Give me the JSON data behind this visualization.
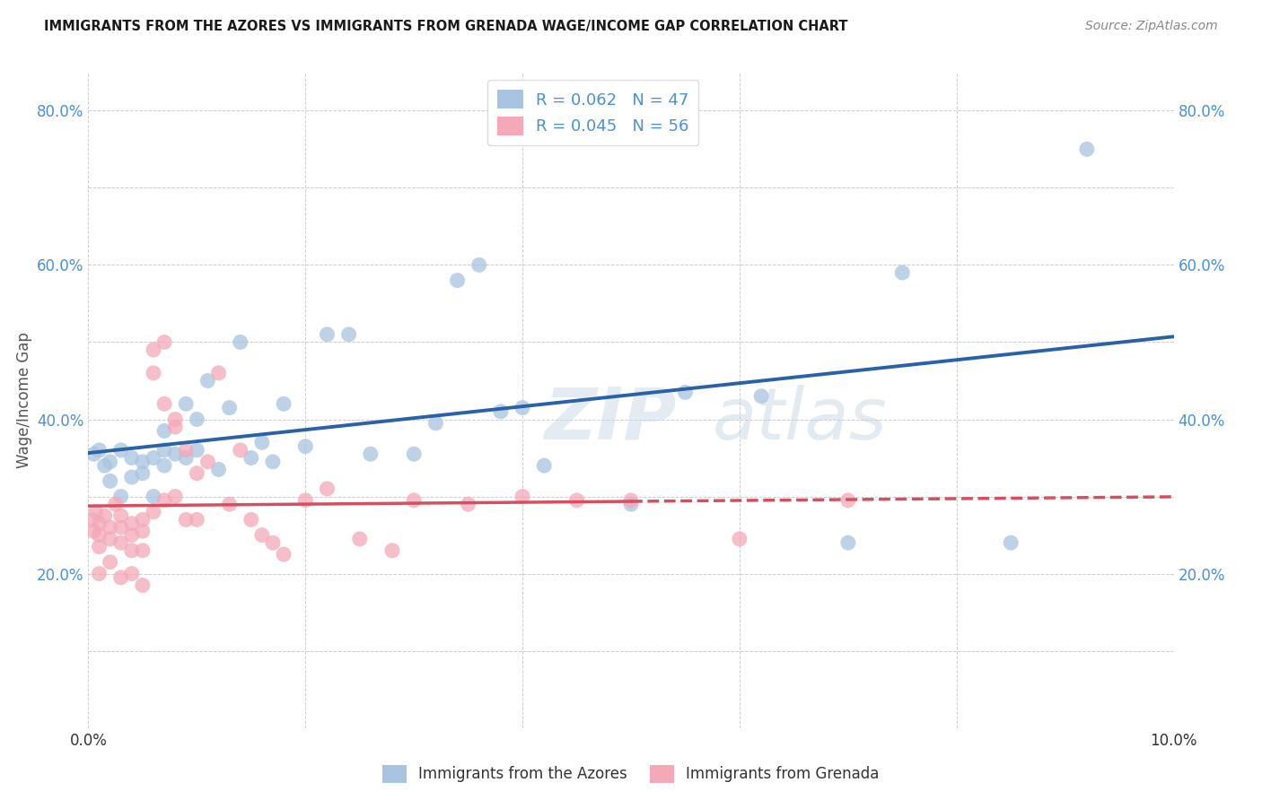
{
  "title": "IMMIGRANTS FROM THE AZORES VS IMMIGRANTS FROM GRENADA WAGE/INCOME GAP CORRELATION CHART",
  "source": "Source: ZipAtlas.com",
  "ylabel": "Wage/Income Gap",
  "x_min": 0.0,
  "x_max": 0.1,
  "y_min": 0.0,
  "y_max": 0.85,
  "x_ticks": [
    0.0,
    0.02,
    0.04,
    0.06,
    0.08,
    0.1
  ],
  "x_tick_labels": [
    "0.0%",
    "",
    "",
    "",
    "",
    "10.0%"
  ],
  "y_ticks": [
    0.0,
    0.1,
    0.2,
    0.3,
    0.4,
    0.5,
    0.6,
    0.7,
    0.8
  ],
  "y_tick_labels": [
    "",
    "",
    "20.0%",
    "",
    "40.0%",
    "",
    "60.0%",
    "",
    "80.0%"
  ],
  "legend_labels": [
    "Immigrants from the Azores",
    "Immigrants from Grenada"
  ],
  "R_azores": 0.062,
  "N_azores": 47,
  "R_grenada": 0.045,
  "N_grenada": 56,
  "color_azores": "#a8c4e0",
  "color_grenada": "#f4a8b8",
  "line_color_azores": "#2962a8",
  "line_color_grenada": "#d45060",
  "watermark_zip": "ZIP",
  "watermark_atlas": "atlas",
  "azores_x": [
    0.0005,
    0.001,
    0.0015,
    0.002,
    0.002,
    0.003,
    0.003,
    0.004,
    0.004,
    0.005,
    0.005,
    0.006,
    0.006,
    0.007,
    0.007,
    0.007,
    0.008,
    0.009,
    0.009,
    0.01,
    0.01,
    0.011,
    0.012,
    0.013,
    0.014,
    0.015,
    0.016,
    0.017,
    0.018,
    0.02,
    0.022,
    0.024,
    0.026,
    0.03,
    0.032,
    0.034,
    0.036,
    0.038,
    0.04,
    0.042,
    0.05,
    0.055,
    0.062,
    0.07,
    0.075,
    0.085,
    0.092
  ],
  "azores_y": [
    0.355,
    0.36,
    0.34,
    0.345,
    0.32,
    0.36,
    0.3,
    0.35,
    0.325,
    0.345,
    0.33,
    0.35,
    0.3,
    0.385,
    0.36,
    0.34,
    0.355,
    0.42,
    0.35,
    0.4,
    0.36,
    0.45,
    0.335,
    0.415,
    0.5,
    0.35,
    0.37,
    0.345,
    0.42,
    0.365,
    0.51,
    0.51,
    0.355,
    0.355,
    0.395,
    0.58,
    0.6,
    0.41,
    0.415,
    0.34,
    0.29,
    0.435,
    0.43,
    0.24,
    0.59,
    0.24,
    0.75
  ],
  "grenada_x": [
    0.0003,
    0.0005,
    0.0007,
    0.001,
    0.001,
    0.001,
    0.001,
    0.0015,
    0.002,
    0.002,
    0.002,
    0.0025,
    0.003,
    0.003,
    0.003,
    0.003,
    0.004,
    0.004,
    0.004,
    0.004,
    0.005,
    0.005,
    0.005,
    0.005,
    0.006,
    0.006,
    0.006,
    0.007,
    0.007,
    0.007,
    0.008,
    0.008,
    0.008,
    0.009,
    0.009,
    0.01,
    0.01,
    0.011,
    0.012,
    0.013,
    0.014,
    0.015,
    0.016,
    0.017,
    0.018,
    0.02,
    0.022,
    0.025,
    0.028,
    0.03,
    0.035,
    0.04,
    0.045,
    0.05,
    0.06,
    0.07
  ],
  "grenada_y": [
    0.27,
    0.255,
    0.28,
    0.265,
    0.25,
    0.235,
    0.2,
    0.275,
    0.26,
    0.245,
    0.215,
    0.29,
    0.275,
    0.26,
    0.24,
    0.195,
    0.265,
    0.25,
    0.23,
    0.2,
    0.27,
    0.255,
    0.23,
    0.185,
    0.49,
    0.46,
    0.28,
    0.5,
    0.42,
    0.295,
    0.4,
    0.39,
    0.3,
    0.36,
    0.27,
    0.33,
    0.27,
    0.345,
    0.46,
    0.29,
    0.36,
    0.27,
    0.25,
    0.24,
    0.225,
    0.295,
    0.31,
    0.245,
    0.23,
    0.295,
    0.29,
    0.3,
    0.295,
    0.295,
    0.245,
    0.295
  ]
}
